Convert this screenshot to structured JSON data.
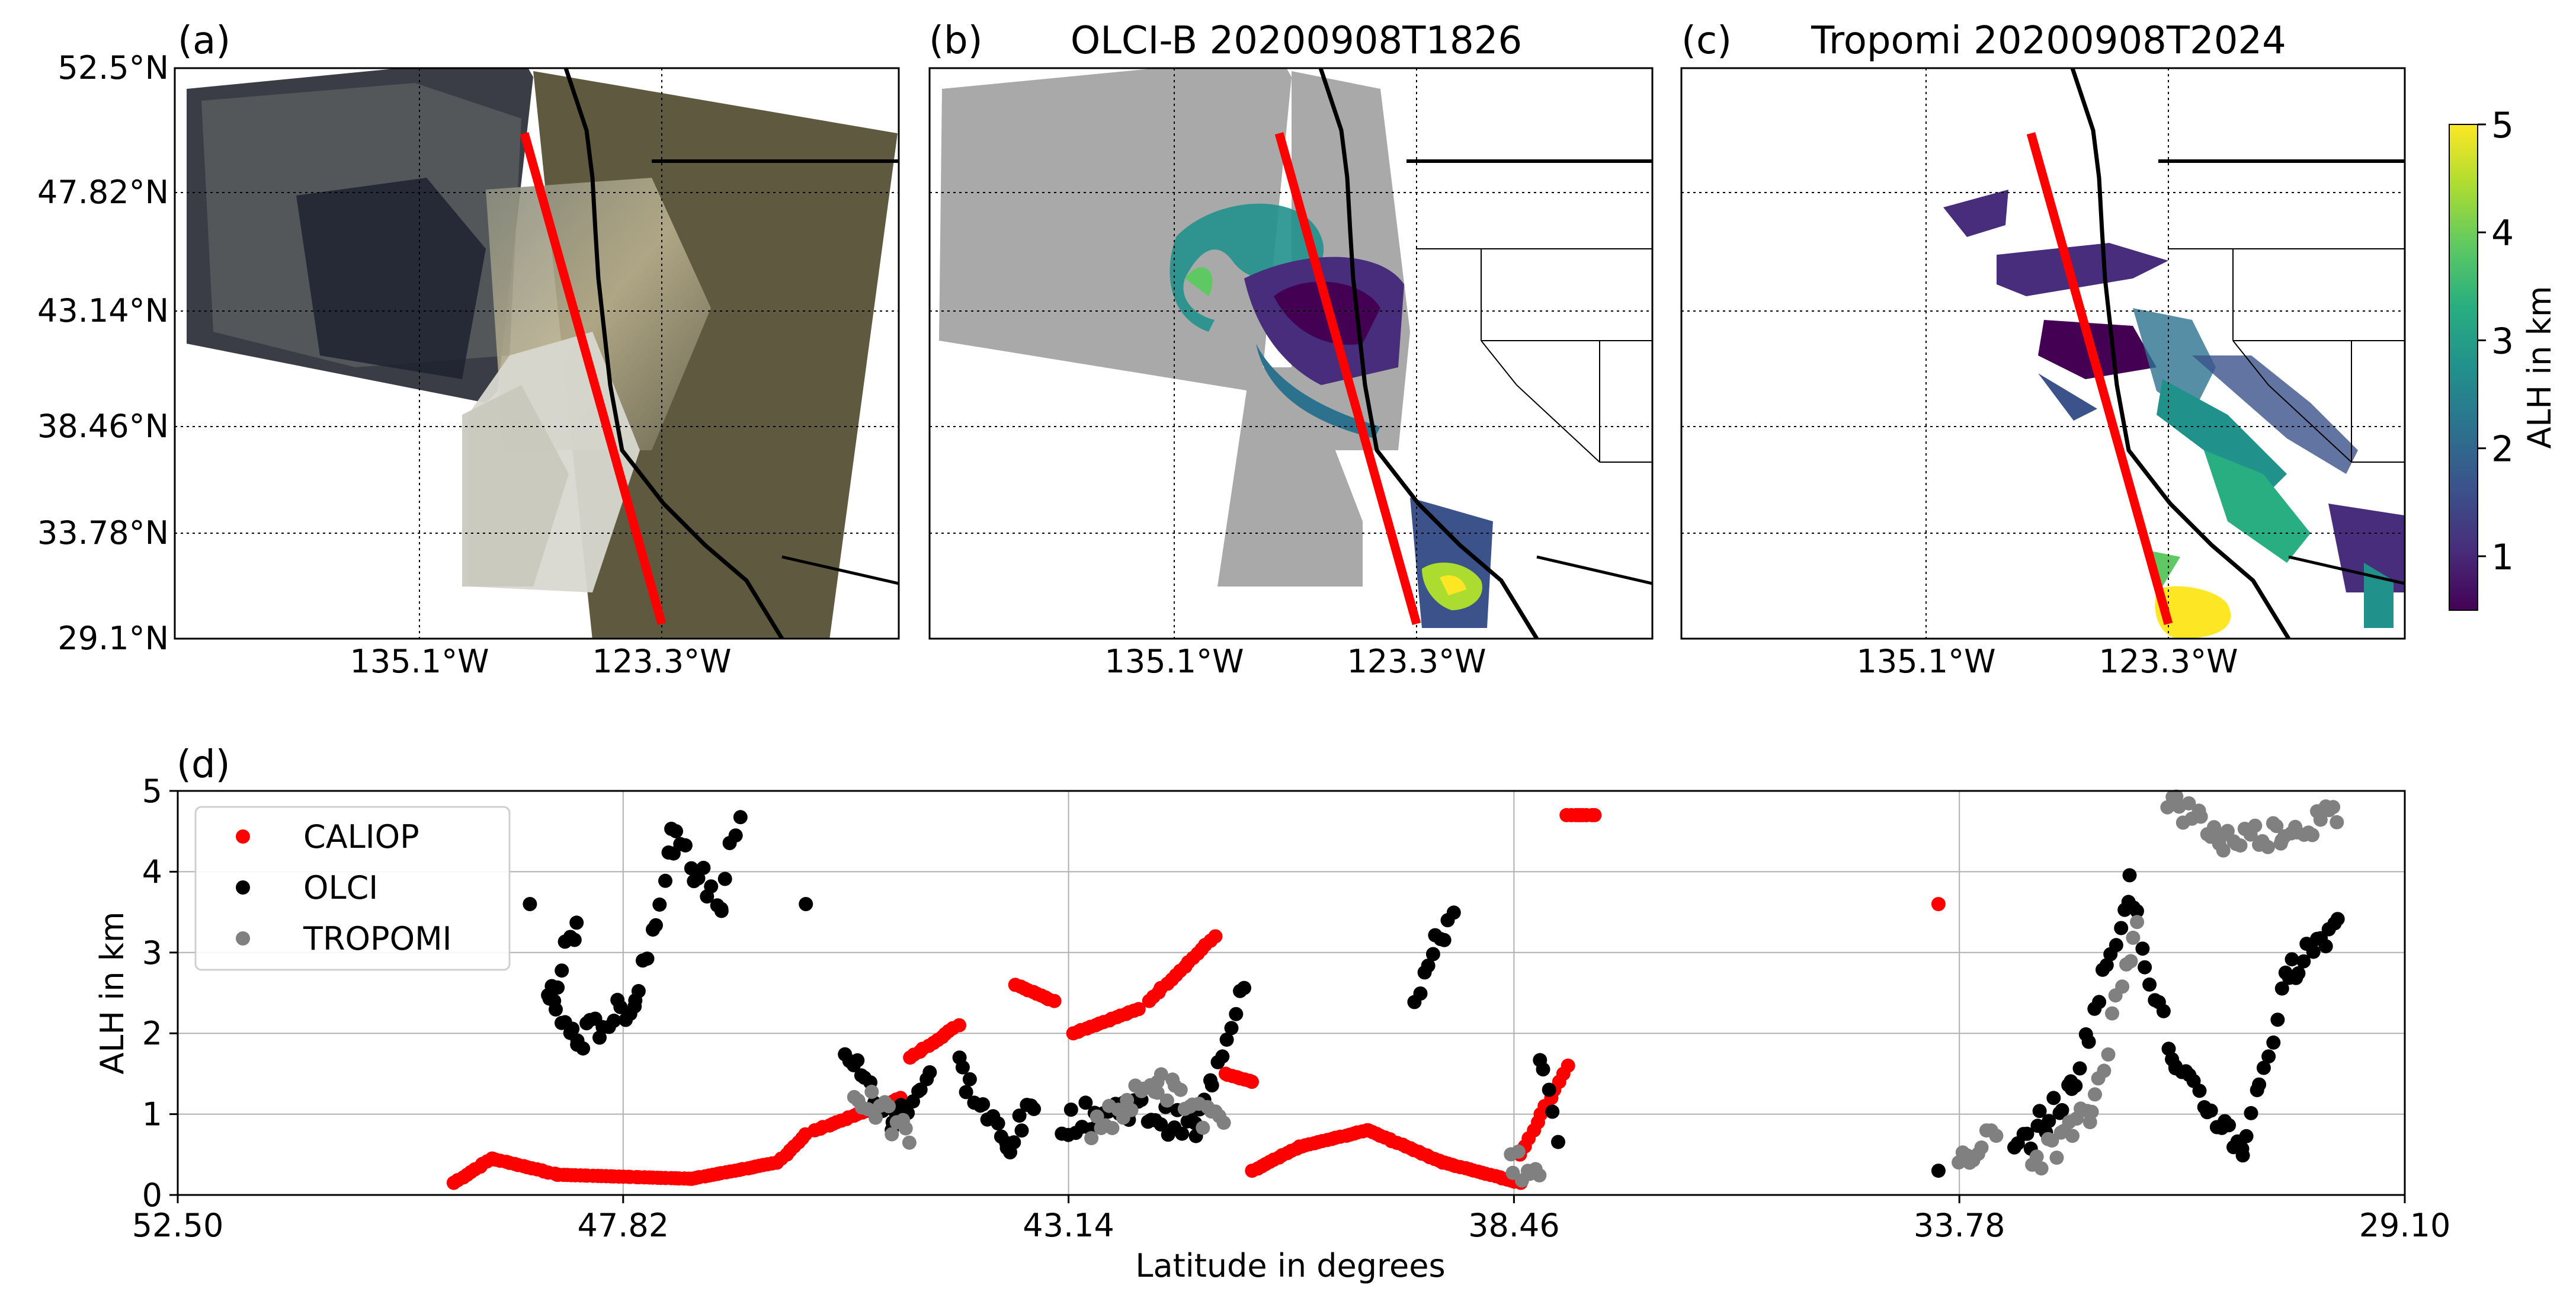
{
  "colors": {
    "caliop": "#ff0000",
    "olci": "#000000",
    "tropomi": "#808080",
    "viridis": [
      "#440154",
      "#472d7b",
      "#3b528b",
      "#2c728e",
      "#21918c",
      "#28ae80",
      "#5ec962",
      "#addc30",
      "#fde725"
    ]
  },
  "chart_data": [
    {
      "type": "map",
      "id": "a",
      "panel_label": "(a)",
      "title": "",
      "lat_ticks": [
        "52.5°N",
        "47.82°N",
        "43.14°N",
        "38.46°N",
        "33.78°N",
        "29.1°N"
      ],
      "lon_ticks": [
        "135.1°W",
        "123.3°W"
      ],
      "lat_range": [
        29.1,
        52.5
      ],
      "lon_range": [
        -147,
        -111
      ],
      "track": {
        "from": [
          -131.5,
          49.8
        ],
        "to": [
          -124.8,
          29.1
        ]
      }
    },
    {
      "type": "map",
      "id": "b",
      "panel_label": "(b)",
      "title": "OLCI-B 20200908T1826",
      "lon_ticks": [
        "135.1°W",
        "123.3°W"
      ],
      "lat_range": [
        29.1,
        52.5
      ],
      "lon_range": [
        -147,
        -111
      ],
      "track": {
        "from": [
          -131.5,
          49.8
        ],
        "to": [
          -124.8,
          29.1
        ]
      }
    },
    {
      "type": "map",
      "id": "c",
      "panel_label": "(c)",
      "title": "Tropomi 20200908T2024",
      "lon_ticks": [
        "135.1°W",
        "123.3°W"
      ],
      "lat_range": [
        29.1,
        52.5
      ],
      "lon_range": [
        -147,
        -111
      ],
      "track": {
        "from": [
          -131.5,
          49.8
        ],
        "to": [
          -124.8,
          29.1
        ]
      }
    },
    {
      "type": "colorbar",
      "label": "ALH in km",
      "range": [
        0.5,
        5
      ],
      "ticks": [
        "1",
        "2",
        "3",
        "4",
        "5"
      ],
      "tick_values": [
        1,
        2,
        3,
        4,
        5
      ]
    },
    {
      "type": "scatter",
      "id": "d",
      "panel_label": "(d)",
      "xlabel": "Latitude in degrees",
      "ylabel": "ALH in km",
      "xlim": [
        52.5,
        29.1
      ],
      "ylim": [
        0,
        5
      ],
      "xticks": [
        "52.50",
        "47.82",
        "43.14",
        "38.46",
        "33.78",
        "29.10"
      ],
      "xtick_values": [
        52.5,
        47.82,
        43.14,
        38.46,
        33.78,
        29.1
      ],
      "yticks": [
        "0",
        "1",
        "2",
        "3",
        "4",
        "5"
      ],
      "ytick_values": [
        0,
        1,
        2,
        3,
        4,
        5
      ],
      "grid": true,
      "legend": "top-left",
      "series": [
        {
          "name": "CALIOP",
          "color": "#ff0000",
          "segments": [
            [
              49.6,
              0.15,
              49.2,
              0.45
            ],
            [
              49.2,
              0.45,
              48.5,
              0.25
            ],
            [
              48.5,
              0.25,
              47.1,
              0.2
            ],
            [
              47.1,
              0.2,
              46.2,
              0.4
            ],
            [
              46.2,
              0.4,
              45.9,
              0.75
            ],
            [
              45.8,
              0.8,
              44.9,
              1.2
            ],
            [
              44.8,
              1.7,
              44.3,
              2.1
            ],
            [
              43.7,
              2.6,
              43.3,
              2.4
            ],
            [
              43.1,
              2.0,
              42.4,
              2.3
            ],
            [
              42.3,
              2.4,
              41.6,
              3.2
            ],
            [
              41.5,
              1.5,
              41.2,
              1.4
            ],
            [
              41.2,
              0.3,
              40.7,
              0.6
            ],
            [
              40.7,
              0.6,
              40.0,
              0.8
            ],
            [
              40.0,
              0.8,
              39.2,
              0.4
            ],
            [
              39.2,
              0.4,
              38.4,
              0.15
            ],
            [
              38.4,
              0.5,
              37.9,
              1.6
            ],
            [
              37.9,
              4.7,
              37.6,
              4.7
            ]
          ],
          "points": [
            [
              34.0,
              3.6
            ]
          ]
        },
        {
          "name": "OLCI",
          "color": "#000000",
          "segments": [
            [
              48.3,
              3.4,
              48.6,
              2.4
            ],
            [
              48.6,
              2.4,
              48.3,
              1.9
            ],
            [
              48.3,
              1.9,
              47.7,
              2.4
            ],
            [
              47.7,
              2.4,
              47.3,
              4.4
            ],
            [
              47.3,
              4.4,
              46.8,
              3.6
            ],
            [
              46.8,
              3.6,
              46.6,
              4.8
            ],
            [
              45.5,
              1.8,
              45.0,
              0.9
            ],
            [
              45.0,
              0.9,
              44.6,
              1.5
            ],
            [
              44.3,
              1.6,
              43.8,
              0.6
            ],
            [
              43.8,
              0.6,
              43.5,
              1.1
            ],
            [
              43.2,
              0.9,
              42.5,
              1.1
            ],
            [
              42.5,
              1.1,
              41.8,
              0.8
            ],
            [
              41.8,
              0.8,
              41.3,
              2.7
            ],
            [
              39.5,
              2.5,
              39.1,
              3.5
            ],
            [
              38.2,
              1.8,
              38.0,
              0.6
            ],
            [
              33.2,
              0.5,
              32.6,
              1.3
            ],
            [
              32.6,
              1.3,
              32.0,
              3.8
            ],
            [
              32.0,
              3.8,
              31.5,
              1.5
            ],
            [
              31.5,
              1.5,
              30.8,
              0.6
            ],
            [
              30.8,
              0.6,
              30.3,
              2.8
            ],
            [
              30.3,
              2.8,
              29.8,
              3.4
            ]
          ],
          "points": [
            [
              48.8,
              3.6
            ],
            [
              45.9,
              3.6
            ],
            [
              34.0,
              0.3
            ]
          ]
        },
        {
          "name": "TROPOMI",
          "color": "#808080",
          "segments": [
            [
              45.4,
              1.3,
              44.8,
              0.7
            ],
            [
              42.9,
              0.8,
              42.2,
              1.4
            ],
            [
              42.2,
              1.4,
              41.5,
              0.8
            ],
            [
              38.5,
              0.5,
              38.2,
              0.1
            ],
            [
              33.8,
              0.5,
              33.4,
              0.7
            ],
            [
              33.0,
              0.4,
              32.4,
              1.0
            ],
            [
              32.4,
              1.0,
              31.9,
              3.5
            ],
            [
              31.6,
              4.9,
              31.0,
              4.4
            ],
            [
              31.0,
              4.4,
              30.4,
              4.5
            ],
            [
              30.4,
              4.5,
              29.8,
              4.7
            ]
          ],
          "points": []
        }
      ]
    }
  ]
}
